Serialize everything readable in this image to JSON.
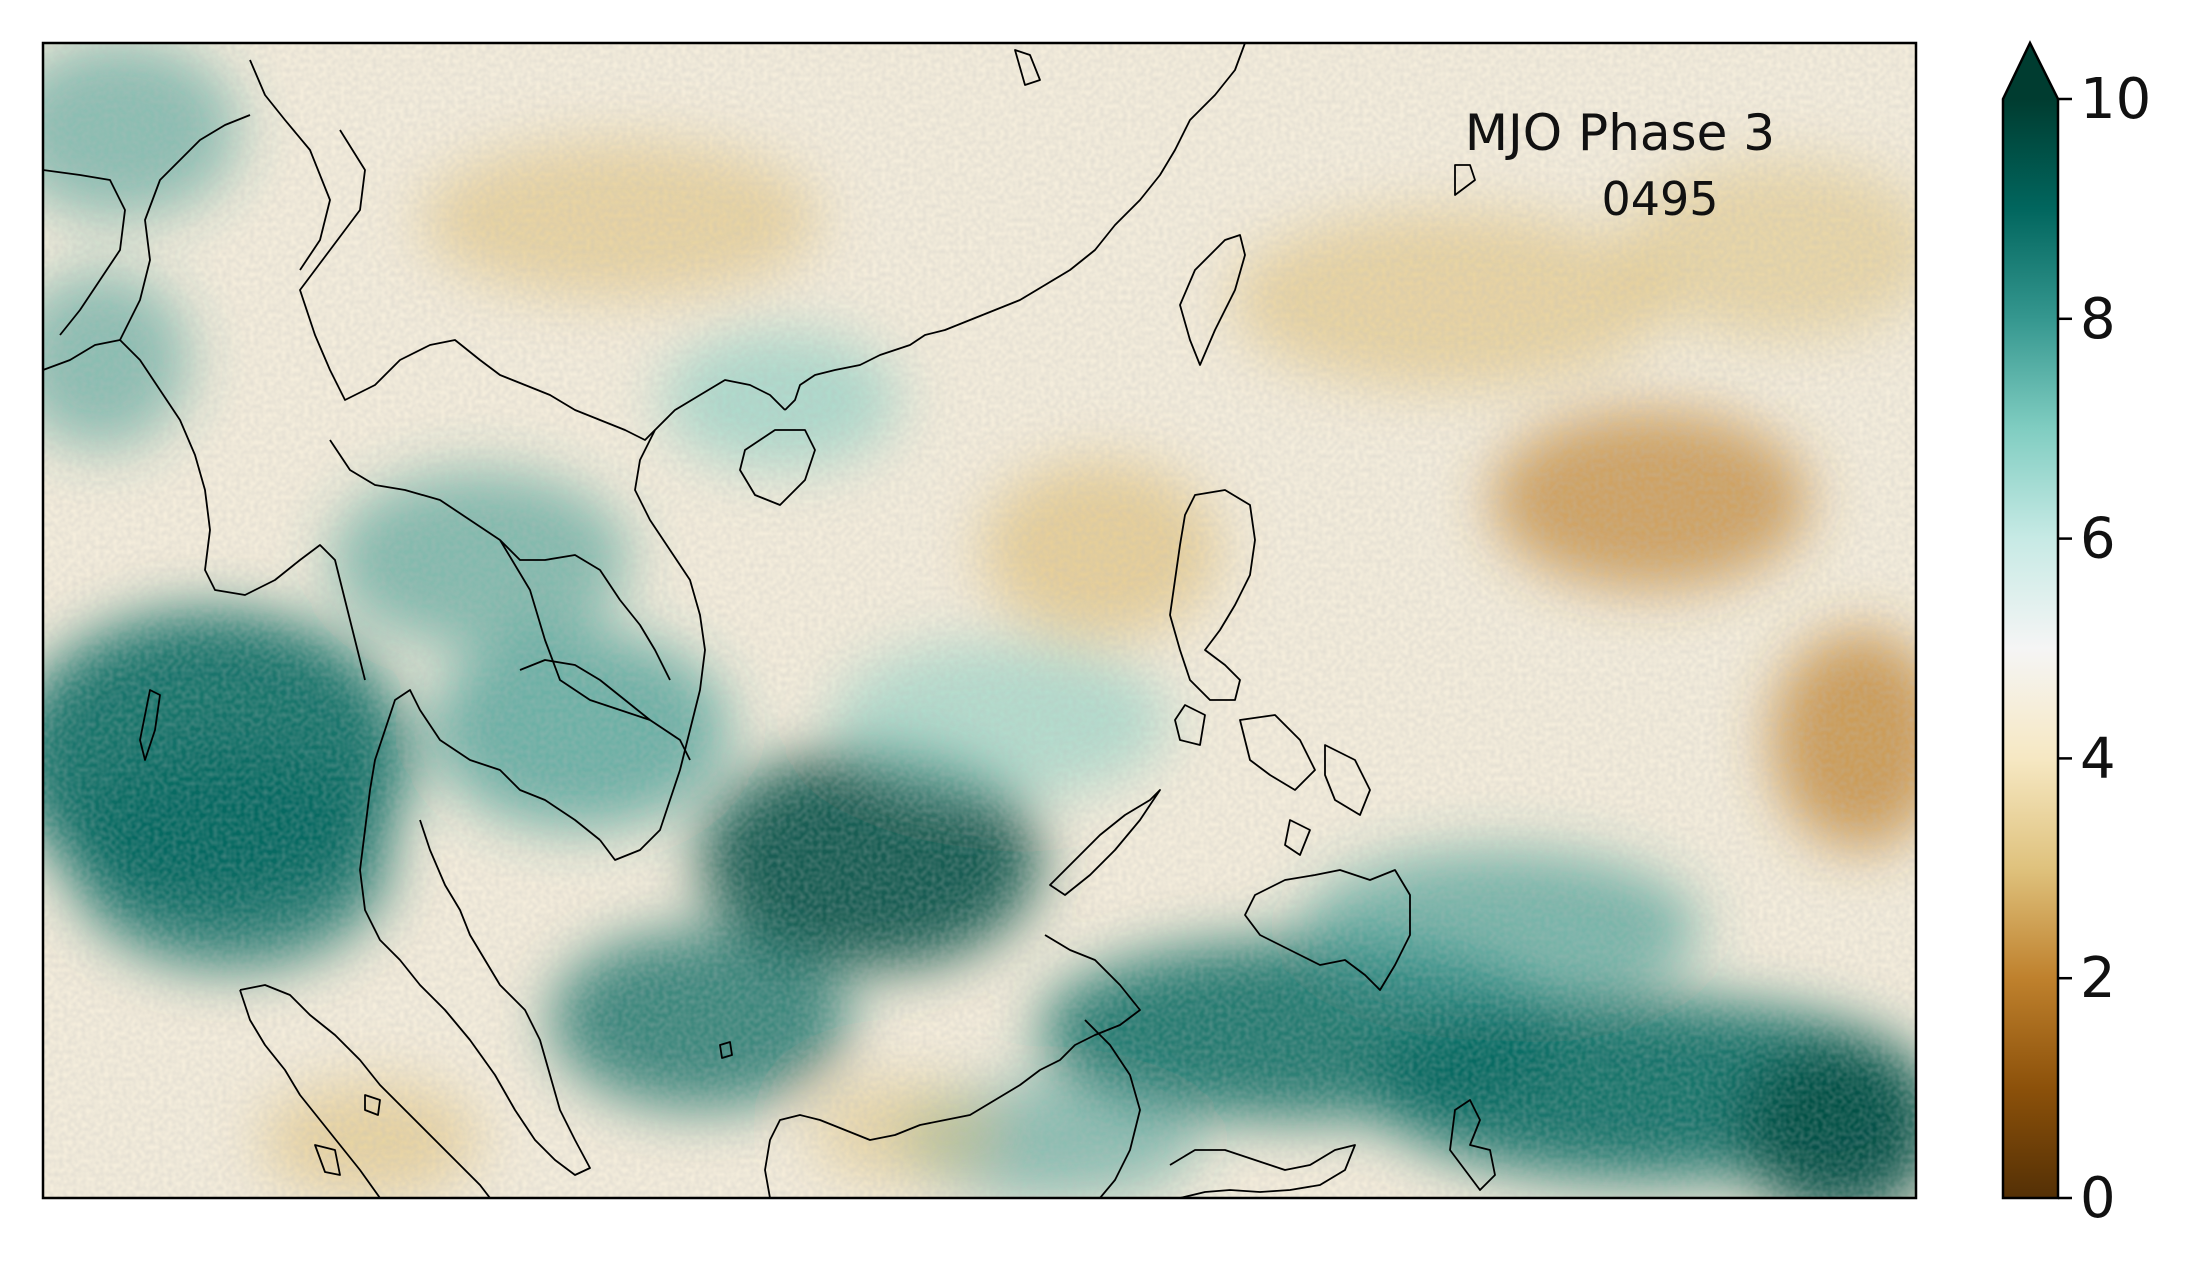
{
  "annotation": {
    "title": "MJO Phase 3",
    "subtitle": "0495"
  },
  "colorbar": {
    "colormap": "BrBG",
    "min": 0,
    "max": 10,
    "extend": "max",
    "ticks": [
      {
        "value": 0,
        "label": "0"
      },
      {
        "value": 2,
        "label": "2"
      },
      {
        "value": 4,
        "label": "4"
      },
      {
        "value": 6,
        "label": "6"
      },
      {
        "value": 8,
        "label": "8"
      },
      {
        "value": 10,
        "label": "10"
      }
    ],
    "stops": [
      "#543005",
      "#8c510a",
      "#bf812d",
      "#dfc27d",
      "#f6e8c3",
      "#f5f5f5",
      "#c7eae5",
      "#80cdc1",
      "#35978f",
      "#01665e",
      "#003c30"
    ]
  },
  "map_style": {
    "coastline_color": "#000000",
    "frame_color": "#000000"
  }
}
